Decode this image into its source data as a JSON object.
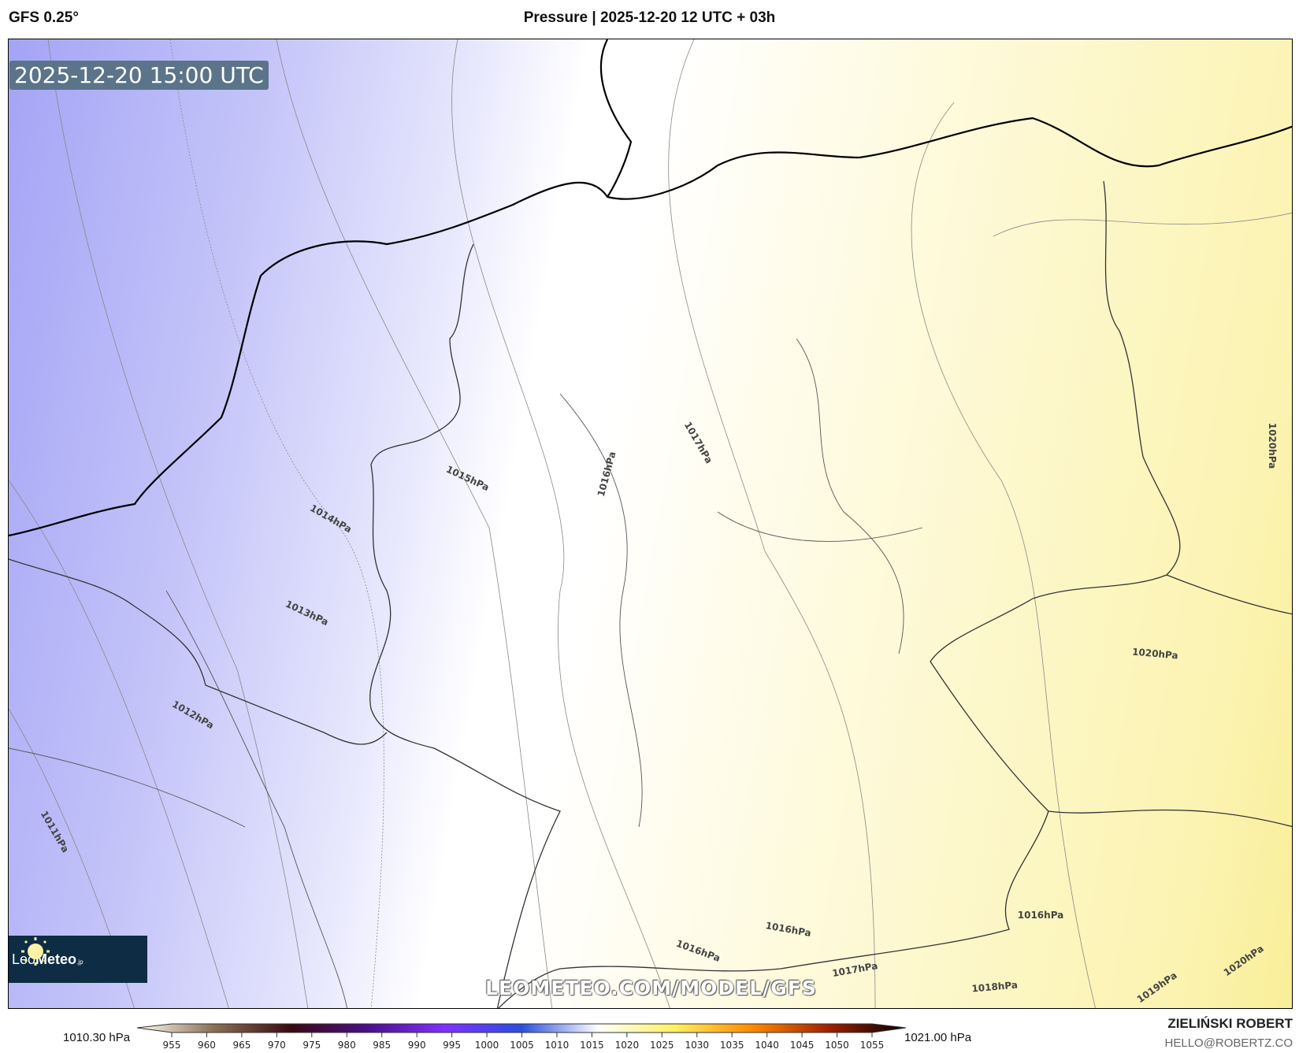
{
  "header": {
    "model": "GFS 0.25°",
    "title": "Pressure | 2025-12-20 12 UTC + 03h"
  },
  "map": {
    "valid_time": "2025-12-20 15:00 UTC",
    "watermark": "LEOMETEO.COM/MODEL/GFS",
    "logo": {
      "text_light": "Leo",
      "text_bold": "Meteo",
      "suffix": ".jp",
      "icon": "sun-icon"
    },
    "contour_labels": [
      "1011hPa",
      "1012hPa",
      "1013hPa",
      "1014hPa",
      "1015hPa",
      "1016hPa",
      "1017hPa",
      "1020hPa",
      "1020hPa",
      "1016hPa",
      "1016hPa",
      "1016hPa",
      "1017hPa",
      "1018hPa",
      "1019hPa",
      "1020hPa"
    ],
    "colors": {
      "low": "#a4a4f6",
      "neutral": "#ffffff",
      "high": "#f9ee98",
      "stamp_bg": "#5b7489",
      "logo_bg": "#0e2d45"
    }
  },
  "colorbar": {
    "min_label": "1010.30 hPa",
    "max_label": "1021.00 hPa",
    "ticks": [
      "955",
      "960",
      "965",
      "970",
      "975",
      "980",
      "985",
      "990",
      "995",
      "1000",
      "1005",
      "1010",
      "1015",
      "1020",
      "1025",
      "1030",
      "1035",
      "1040",
      "1045",
      "1050",
      "1055"
    ],
    "stops": [
      "#fffdf5",
      "#8b6f55",
      "#3a0a10",
      "#4b0f8a",
      "#8030ff",
      "#2a4fe0",
      "#ffffff",
      "#fff060",
      "#ff8a00",
      "#a02000",
      "#000000"
    ]
  },
  "author": {
    "name": "ZIELIŃSKI ROBERT",
    "email": "HELLO@ROBERTZ.CO"
  }
}
